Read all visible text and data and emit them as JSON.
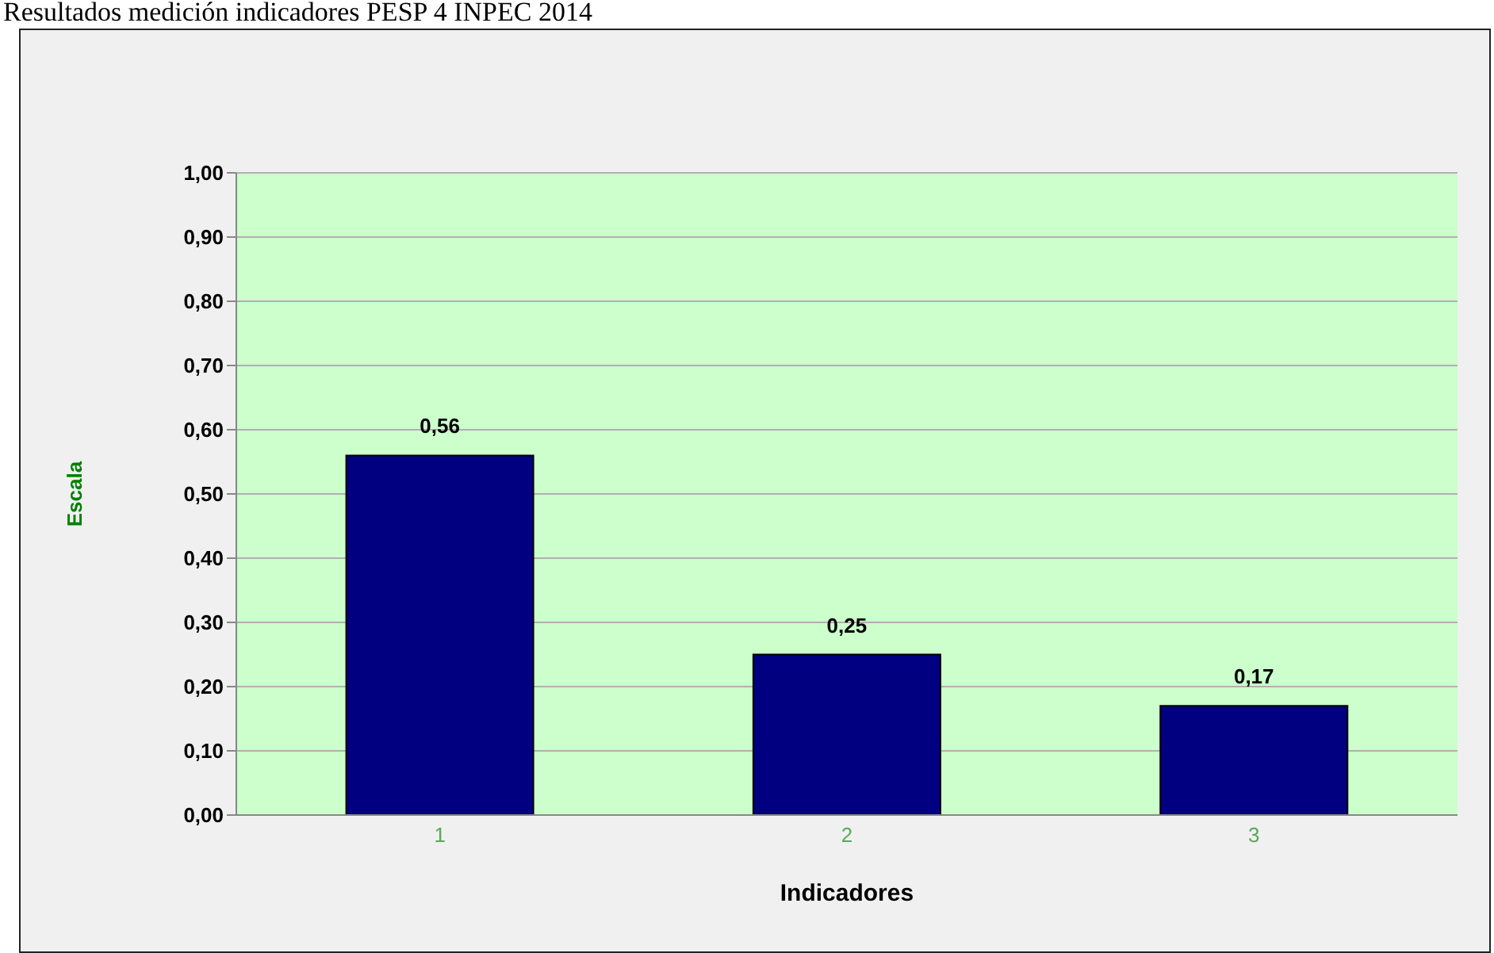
{
  "chart_data": {
    "type": "bar",
    "title": "Resultados medición indicadores PESP 4 INPEC 2014",
    "xlabel": "Indicadores",
    "ylabel": "Escala",
    "categories": [
      "1",
      "2",
      "3"
    ],
    "values": [
      0.56,
      0.25,
      0.17
    ],
    "color": "#000080",
    "value_labels": [
      "0,56",
      "0,25",
      "0,17"
    ],
    "ylim": [
      0,
      1
    ],
    "yticks": [
      {
        "value": 0,
        "label": "0,00"
      },
      {
        "value": 0.1,
        "label": "0,10"
      },
      {
        "value": 0.2,
        "label": "0,20"
      },
      {
        "value": 0.3,
        "label": "0,30"
      },
      {
        "value": 0.4,
        "label": "0,40"
      },
      {
        "value": 0.5,
        "label": "0,50"
      },
      {
        "value": 0.6,
        "label": "0,60"
      },
      {
        "value": 0.7,
        "label": "0,70"
      },
      {
        "value": 0.8,
        "label": "0,80"
      },
      {
        "value": 0.9,
        "label": "0,90"
      },
      {
        "value": 1,
        "label": "1,00"
      }
    ],
    "grid": "y"
  }
}
